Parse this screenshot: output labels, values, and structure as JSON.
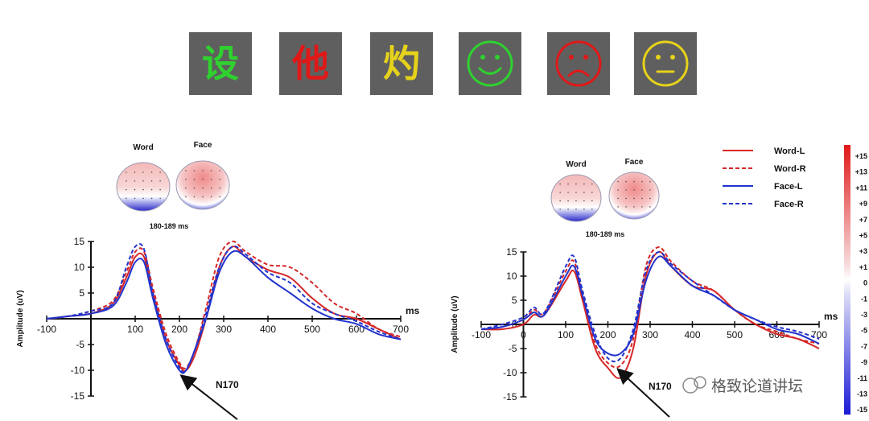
{
  "stimuli": [
    {
      "kind": "word",
      "char": "设",
      "color": "#2fd12f"
    },
    {
      "kind": "word",
      "char": "他",
      "color": "#e01818"
    },
    {
      "kind": "word",
      "char": "灼",
      "color": "#e6d21a"
    },
    {
      "kind": "face",
      "expression": "happy",
      "color": "#2fd12f"
    },
    {
      "kind": "face",
      "expression": "sad",
      "color": "#e01818"
    },
    {
      "kind": "face",
      "expression": "neutral",
      "color": "#e6d21a"
    }
  ],
  "topomaps": {
    "left": {
      "labels": [
        "Word",
        "Face"
      ],
      "time_label": "180-189 ms"
    },
    "right": {
      "labels": [
        "Word",
        "Face"
      ],
      "time_label": "180-189 ms"
    }
  },
  "annotation": "N170",
  "watermark": "格致论道讲坛",
  "colorbar": {
    "ticks": [
      "+15",
      "+13",
      "+11",
      "+9",
      "+7",
      "+5",
      "+3",
      "+1",
      "0",
      "-1",
      "-3",
      "-5",
      "-7",
      "-9",
      "-11",
      "-13",
      "-15"
    ],
    "colors": {
      "positive": "#e01818",
      "negative": "#1a1ad6"
    }
  },
  "colors": {
    "word": "#d62728",
    "face": "#2233cc"
  },
  "chart_data": [
    {
      "type": "line",
      "xlabel": "ms",
      "ylabel": "Amplitude (uV)",
      "xlim": [
        -100,
        700
      ],
      "ylim": [
        -15,
        15
      ],
      "xticks": [
        -100,
        100,
        200,
        300,
        400,
        500,
        600,
        700
      ],
      "yticks": [
        -15,
        -10,
        -5,
        5,
        10,
        15
      ],
      "x": [
        -100,
        -50,
        0,
        50,
        80,
        100,
        120,
        140,
        170,
        200,
        215,
        235,
        260,
        290,
        320,
        350,
        400,
        450,
        500,
        550,
        600,
        650,
        700
      ],
      "series": [
        {
          "name": "Word-L",
          "color": "#d62728",
          "dash": false,
          "values": [
            0,
            0.5,
            1,
            3,
            8,
            12,
            12,
            5,
            -4,
            -9,
            -10,
            -7,
            0,
            10,
            14,
            12,
            9.5,
            8,
            4,
            1,
            0,
            -2,
            -4
          ]
        },
        {
          "name": "Word-R",
          "color": "#d62728",
          "dash": true,
          "values": [
            0,
            0.5,
            1.5,
            3.5,
            9,
            13,
            13,
            6,
            -3,
            -8.5,
            -9.5,
            -6,
            2,
            12,
            15,
            13,
            10.5,
            10,
            7,
            3,
            1,
            -2,
            -3.5
          ]
        },
        {
          "name": "Face-L",
          "color": "#2233cc",
          "dash": false,
          "values": [
            0,
            0.5,
            1,
            2.5,
            7,
            11,
            11,
            4,
            -5,
            -10,
            -10,
            -6,
            0,
            9,
            13,
            12,
            8,
            5,
            2,
            0,
            -1,
            -3,
            -4
          ]
        },
        {
          "name": "Face-R",
          "color": "#2233cc",
          "dash": true,
          "values": [
            0,
            0.5,
            1.5,
            3,
            10,
            14,
            13.5,
            5,
            -4,
            -9.5,
            -10,
            -6,
            1,
            10,
            14,
            12.5,
            9,
            7,
            3,
            1,
            -0.5,
            -2.5,
            -4
          ]
        }
      ]
    },
    {
      "type": "line",
      "xlabel": "ms",
      "ylabel": "Amplitude (uV)",
      "xlim": [
        -100,
        700
      ],
      "ylim": [
        -15,
        15
      ],
      "xticks": [
        -100,
        0,
        100,
        200,
        300,
        400,
        500,
        600,
        700
      ],
      "yticks": [
        -15,
        -10,
        -5,
        0,
        5,
        10,
        15
      ],
      "x": [
        -100,
        -50,
        0,
        25,
        50,
        100,
        120,
        140,
        170,
        200,
        230,
        260,
        290,
        320,
        350,
        400,
        450,
        500,
        550,
        600,
        650,
        700
      ],
      "series": [
        {
          "name": "Word-L",
          "color": "#d62728",
          "dash": false,
          "values": [
            -1,
            -1,
            0,
            2,
            2,
            9,
            11,
            5,
            -5,
            -9,
            -11,
            -5,
            10,
            15,
            12,
            8,
            7,
            3,
            0,
            -2,
            -3,
            -5
          ]
        },
        {
          "name": "Word-R",
          "color": "#d62728",
          "dash": true,
          "values": [
            -1,
            -0.5,
            1,
            3,
            2.5,
            11,
            13,
            6,
            -4,
            -8,
            -8.5,
            -3,
            12,
            16,
            13,
            9,
            7,
            3,
            0,
            -1.5,
            -3,
            -4
          ]
        },
        {
          "name": "Face-L",
          "color": "#2233cc",
          "dash": false,
          "values": [
            -1,
            -0.5,
            1,
            2.5,
            2,
            10,
            12,
            6,
            -3,
            -6,
            -6,
            -2,
            9,
            14,
            12,
            8,
            6,
            3,
            1,
            -1,
            -2,
            -4
          ]
        },
        {
          "name": "Face-R",
          "color": "#2233cc",
          "dash": true,
          "values": [
            -1,
            0,
            1.5,
            3.5,
            2.5,
            12,
            14,
            7,
            -2,
            -7,
            -7,
            -1,
            11,
            15,
            12.5,
            9,
            6,
            3,
            1,
            -0.5,
            -1.5,
            -3
          ]
        }
      ]
    }
  ]
}
